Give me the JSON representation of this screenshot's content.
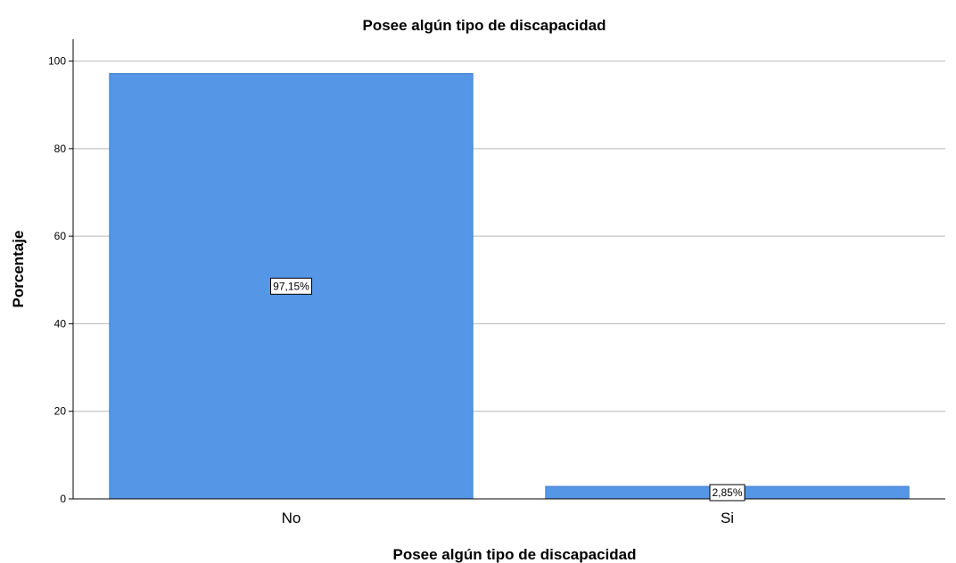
{
  "chart_data": {
    "type": "bar",
    "title": "Posee algún tipo de discapacidad",
    "xlabel": "Posee algún tipo de discapacidad",
    "ylabel": "Porcentaje",
    "categories": [
      "No",
      "Si"
    ],
    "values": [
      97.15,
      2.85
    ],
    "data_labels": [
      "97,15%",
      "2,85%"
    ],
    "ylim": [
      0,
      105
    ],
    "yticks": [
      0,
      20,
      40,
      60,
      80,
      100
    ],
    "ytick_labels": [
      "0",
      "20",
      "40",
      "60",
      "80",
      "100"
    ],
    "grid": true,
    "legend": "none",
    "colors": {
      "bar_fill": "#5596e6",
      "bar_stroke": "#3f7fcf",
      "grid": "#b8b8b8",
      "axis": "#000000",
      "label_box": "#ffffff"
    }
  }
}
